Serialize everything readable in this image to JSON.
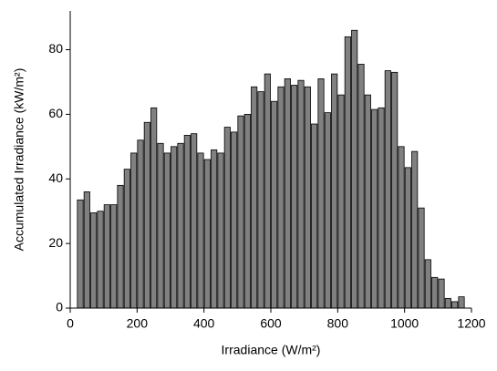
{
  "chart_data": {
    "type": "histogram",
    "xlabel": "Irradiance (W/m²)",
    "ylabel": "Accumulated Irradiance (kW/m²)",
    "bins": [
      20,
      40,
      60,
      80,
      100,
      120,
      140,
      160,
      180,
      200,
      220,
      240,
      260,
      280,
      300,
      320,
      340,
      360,
      380,
      400,
      420,
      440,
      460,
      480,
      500,
      520,
      540,
      560,
      580,
      600,
      620,
      640,
      660,
      680,
      700,
      720,
      740,
      760,
      780,
      800,
      820,
      840,
      860,
      880,
      900,
      920,
      940,
      960,
      980,
      1000,
      1020,
      1040,
      1060,
      1080,
      1100,
      1120,
      1140,
      1160,
      1180
    ],
    "values": [
      33.5,
      36,
      29.5,
      30,
      32,
      32,
      38,
      43,
      48,
      52,
      57.5,
      62,
      51,
      48,
      50,
      51,
      53.5,
      54,
      48,
      46,
      49,
      48,
      56,
      54.5,
      59.5,
      60,
      68.5,
      67,
      72.5,
      64,
      68.5,
      71,
      69,
      70.5,
      68.5,
      57,
      71,
      60.5,
      72.5,
      66,
      84,
      86,
      75.5,
      66,
      61.5,
      62,
      73.5,
      73,
      50,
      43.5,
      48.5,
      31,
      15,
      9.5,
      9,
      3,
      2,
      3.5
    ],
    "color": "#808080",
    "xlim": [
      0,
      1200
    ],
    "xticks": [
      0,
      200,
      400,
      600,
      800,
      1000,
      1200
    ],
    "ylim": [
      0,
      92
    ],
    "yticks": [
      0,
      20,
      40,
      60,
      80
    ]
  }
}
